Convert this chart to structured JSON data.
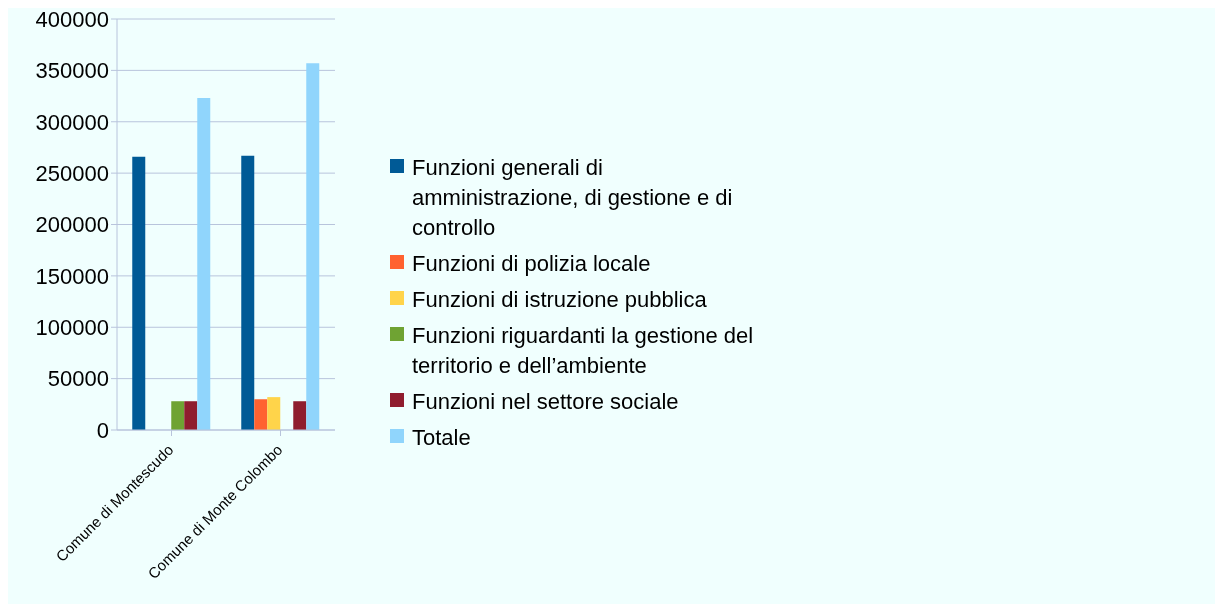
{
  "chart_data": {
    "type": "bar",
    "categories": [
      "Comune di Montescudo",
      "Comune di Monte Colombo"
    ],
    "series": [
      {
        "name": "Funzioni generali di amministrazione, di gestione e di controllo",
        "color": "#005a96",
        "values": [
          266000,
          267000
        ]
      },
      {
        "name": "Funzioni di polizia locale",
        "color": "#ff6230",
        "values": [
          null,
          30000
        ]
      },
      {
        "name": "Funzioni di istruzione pubblica",
        "color": "#ffd44a",
        "values": [
          null,
          32000
        ]
      },
      {
        "name": "Funzioni riguardanti la gestione del territorio e dell’ambiente",
        "color": "#6fa333",
        "values": [
          28000,
          null
        ]
      },
      {
        "name": "Funzioni nel settore sociale",
        "color": "#8f1d2e",
        "values": [
          28000,
          28000
        ]
      },
      {
        "name": "Totale",
        "color": "#90d5fc",
        "values": [
          323000,
          357000
        ]
      }
    ],
    "ylim": [
      0,
      400000
    ],
    "yticks": [
      0,
      50000,
      100000,
      150000,
      200000,
      250000,
      300000,
      350000,
      400000
    ],
    "grid": "y",
    "legend": "right"
  }
}
